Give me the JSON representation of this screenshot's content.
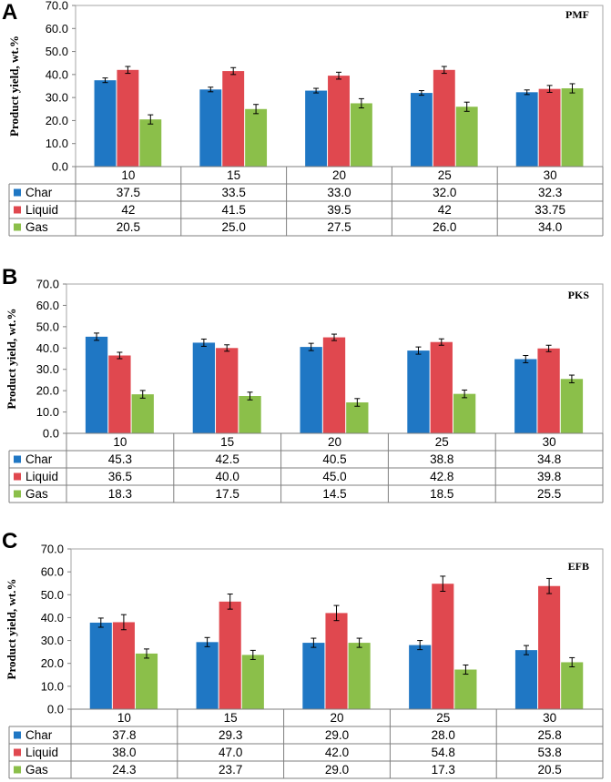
{
  "chart_data": [
    {
      "panel": "A",
      "type": "bar",
      "title": "PMF",
      "ylabel": "Product yield, wt.%",
      "ylim": [
        0,
        70
      ],
      "yticks": [
        "0.0",
        "10.0",
        "20.0",
        "30.0",
        "40.0",
        "50.0",
        "60.0",
        "70.0"
      ],
      "categories": [
        "10",
        "15",
        "20",
        "25",
        "30"
      ],
      "series": [
        {
          "name": "Char",
          "color": "#1f77c4",
          "values": [
            37.5,
            33.5,
            33.0,
            32.0,
            32.3
          ],
          "labels": [
            "37.5",
            "33.5",
            "33.0",
            "32.0",
            "32.3"
          ],
          "errors": [
            1.0,
            1.0,
            1.0,
            1.0,
            1.0
          ]
        },
        {
          "name": "Liquid",
          "color": "#e0484f",
          "values": [
            42,
            41.5,
            39.5,
            42,
            33.75
          ],
          "labels": [
            "42",
            "41.5",
            "39.5",
            "42",
            "33.75"
          ],
          "errors": [
            1.5,
            1.5,
            1.5,
            1.5,
            1.5
          ]
        },
        {
          "name": "Gas",
          "color": "#8bbf4a",
          "values": [
            20.5,
            25.0,
            27.5,
            26.0,
            34.0
          ],
          "labels": [
            "20.5",
            "25.0",
            "27.5",
            "26.0",
            "34.0"
          ],
          "errors": [
            2.0,
            2.0,
            2.0,
            2.0,
            2.0
          ]
        }
      ]
    },
    {
      "panel": "B",
      "type": "bar",
      "title": "PKS",
      "ylabel": "Product yield, wt.%",
      "ylim": [
        0,
        70
      ],
      "yticks": [
        "0.0",
        "10.0",
        "20.0",
        "30.0",
        "40.0",
        "50.0",
        "60.0",
        "70.0"
      ],
      "categories": [
        "10",
        "15",
        "20",
        "25",
        "30"
      ],
      "series": [
        {
          "name": "Char",
          "color": "#1f77c4",
          "values": [
            45.3,
            42.5,
            40.5,
            38.8,
            34.8
          ],
          "labels": [
            "45.3",
            "42.5",
            "40.5",
            "38.8",
            "34.8"
          ],
          "errors": [
            1.7,
            1.7,
            1.7,
            1.7,
            1.7
          ]
        },
        {
          "name": "Liquid",
          "color": "#e0484f",
          "values": [
            36.5,
            40.0,
            45.0,
            42.8,
            39.8
          ],
          "labels": [
            "36.5",
            "40.0",
            "45.0",
            "42.8",
            "39.8"
          ],
          "errors": [
            1.5,
            1.5,
            1.5,
            1.5,
            1.5
          ]
        },
        {
          "name": "Gas",
          "color": "#8bbf4a",
          "values": [
            18.3,
            17.5,
            14.5,
            18.5,
            25.5
          ],
          "labels": [
            "18.3",
            "17.5",
            "14.5",
            "18.5",
            "25.5"
          ],
          "errors": [
            1.8,
            1.8,
            1.8,
            1.8,
            1.8
          ]
        }
      ]
    },
    {
      "panel": "C",
      "type": "bar",
      "title": "EFB",
      "ylabel": "Product yield, wt.%",
      "ylim": [
        0,
        70
      ],
      "yticks": [
        "0.0",
        "10.0",
        "20.0",
        "30.0",
        "40.0",
        "50.0",
        "60.0",
        "70.0"
      ],
      "categories": [
        "10",
        "15",
        "20",
        "25",
        "30"
      ],
      "series": [
        {
          "name": "Char",
          "color": "#1f77c4",
          "values": [
            37.8,
            29.3,
            29.0,
            28.0,
            25.8
          ],
          "labels": [
            "37.8",
            "29.3",
            "29.0",
            "28.0",
            "25.8"
          ],
          "errors": [
            2.0,
            2.0,
            2.0,
            2.0,
            2.0
          ]
        },
        {
          "name": "Liquid",
          "color": "#e0484f",
          "values": [
            38.0,
            47.0,
            42.0,
            54.8,
            53.8
          ],
          "labels": [
            "38.0",
            "47.0",
            "42.0",
            "54.8",
            "53.8"
          ],
          "errors": [
            3.3,
            3.3,
            3.3,
            3.3,
            3.3
          ]
        },
        {
          "name": "Gas",
          "color": "#8bbf4a",
          "values": [
            24.3,
            23.7,
            29.0,
            17.3,
            20.5
          ],
          "labels": [
            "24.3",
            "23.7",
            "29.0",
            "17.3",
            "20.5"
          ],
          "errors": [
            2.0,
            2.0,
            2.0,
            2.0,
            2.0
          ]
        }
      ]
    }
  ]
}
